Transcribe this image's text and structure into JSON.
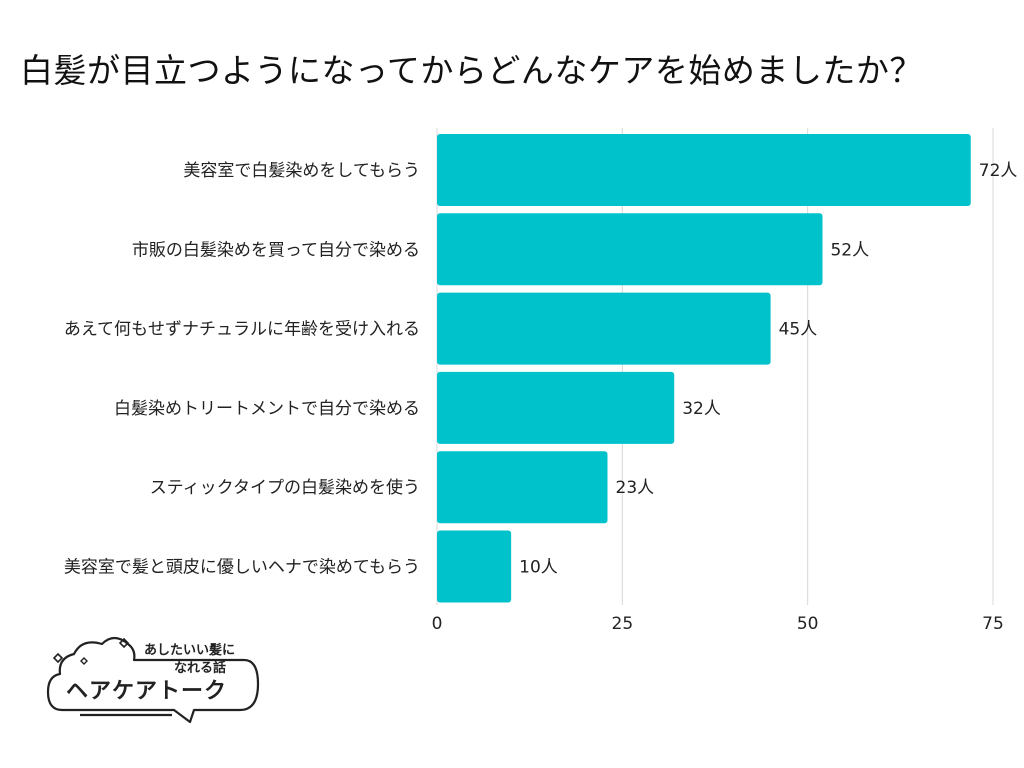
{
  "title": "白髪が目立つようになってからどんなケアを始めましたか？",
  "colors": {
    "bar": "#00c2cb",
    "grid": "#d8d8d8",
    "text": "#222222"
  },
  "logo": {
    "line1": "あしたいい髪に",
    "line2": "なれる話",
    "name": "ヘアケアトーク"
  },
  "chart_data": {
    "type": "bar",
    "orientation": "horizontal",
    "title": "白髪が目立つようになってからどんなケアを始めましたか？",
    "categories": [
      "美容室で白髪染めをしてもらう",
      "市販の白髪染めを買って自分で染める",
      "あえて何もせずナチュラルに年齢を受け入れる",
      "白髪染めトリートメントで自分で染める",
      "スティックタイプの白髪染めを使う",
      "美容室で髪と頭皮に優しいヘナで染めてもらう"
    ],
    "values": [
      72,
      52,
      45,
      32,
      23,
      10
    ],
    "value_labels": [
      "72人",
      "52人",
      "45人",
      "32人",
      "23人",
      "10人"
    ],
    "unit": "人",
    "xlim": [
      0,
      75
    ],
    "xticks": [
      0,
      25,
      50,
      75
    ],
    "xtick_labels": [
      "0",
      "25",
      "50",
      "75"
    ],
    "grid": true
  }
}
